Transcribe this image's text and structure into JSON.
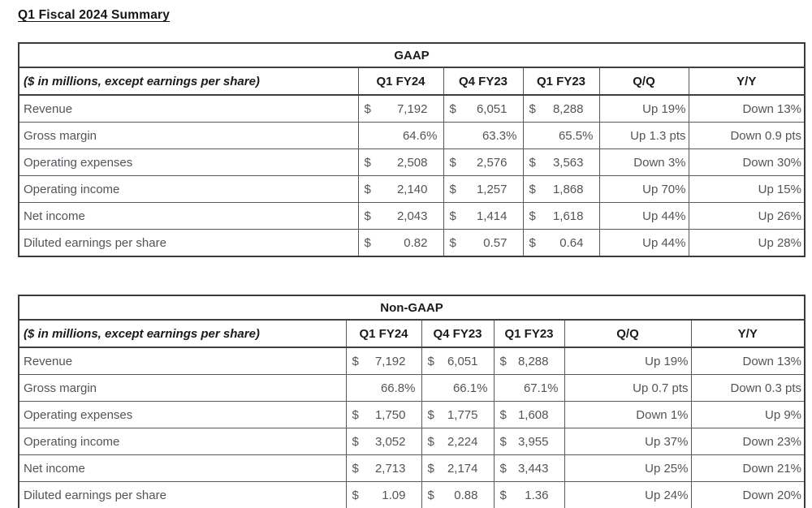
{
  "page_title": "Q1 Fiscal 2024 Summary",
  "symbols": {
    "dollar": "$"
  },
  "colors": {
    "header_text": "#1b1b1b",
    "body_text": "#56525a",
    "table_border": "#3a3a3c",
    "cell_border": "#58585b",
    "background": "#ffffff"
  },
  "tables": [
    {
      "title": "GAAP",
      "subtitle": "($ in millions, except earnings per share)",
      "columns": [
        "Q1 FY24",
        "Q4 FY23",
        "Q1 FY23",
        "Q/Q",
        "Y/Y"
      ],
      "rows": [
        {
          "label": "Revenue",
          "type": "currency",
          "values": [
            "7,192",
            "6,051",
            "8,288"
          ],
          "qq": "Up 19%",
          "yy": "Down 13%"
        },
        {
          "label": "Gross margin",
          "type": "percent",
          "values": [
            "64.6%",
            "63.3%",
            "65.5%"
          ],
          "qq": "Up 1.3 pts",
          "yy": "Down 0.9 pts"
        },
        {
          "label": "Operating expenses",
          "type": "currency",
          "values": [
            "2,508",
            "2,576",
            "3,563"
          ],
          "qq": "Down 3%",
          "yy": "Down 30%"
        },
        {
          "label": "Operating income",
          "type": "currency",
          "values": [
            "2,140",
            "1,257",
            "1,868"
          ],
          "qq": "Up 70%",
          "yy": "Up 15%"
        },
        {
          "label": "Net income",
          "type": "currency",
          "values": [
            "2,043",
            "1,414",
            "1,618"
          ],
          "qq": "Up 44%",
          "yy": "Up 26%"
        },
        {
          "label": "Diluted earnings per share",
          "type": "currency",
          "values": [
            "0.82",
            "0.57",
            "0.64"
          ],
          "qq": "Up 44%",
          "yy": "Up 28%"
        }
      ]
    },
    {
      "title": "Non-GAAP",
      "subtitle": "($ in millions, except earnings per share)",
      "columns": [
        "Q1 FY24",
        "Q4 FY23",
        "Q1 FY23",
        "Q/Q",
        "Y/Y"
      ],
      "rows": [
        {
          "label": "Revenue",
          "type": "currency",
          "values": [
            "7,192",
            "6,051",
            "8,288"
          ],
          "qq": "Up 19%",
          "yy": "Down 13%"
        },
        {
          "label": "Gross margin",
          "type": "percent",
          "values": [
            "66.8%",
            "66.1%",
            "67.1%"
          ],
          "qq": "Up 0.7 pts",
          "yy": "Down 0.3 pts"
        },
        {
          "label": "Operating expenses",
          "type": "currency",
          "values": [
            "1,750",
            "1,775",
            "1,608"
          ],
          "qq": "Down 1%",
          "yy": "Up 9%"
        },
        {
          "label": "Operating income",
          "type": "currency",
          "values": [
            "3,052",
            "2,224",
            "3,955"
          ],
          "qq": "Up 37%",
          "yy": "Down 23%"
        },
        {
          "label": "Net income",
          "type": "currency",
          "values": [
            "2,713",
            "2,174",
            "3,443"
          ],
          "qq": "Up 25%",
          "yy": "Down 21%"
        },
        {
          "label": "Diluted earnings per share",
          "type": "currency",
          "values": [
            "1.09",
            "0.88",
            "1.36"
          ],
          "qq": "Up 24%",
          "yy": "Down 20%"
        }
      ]
    }
  ]
}
